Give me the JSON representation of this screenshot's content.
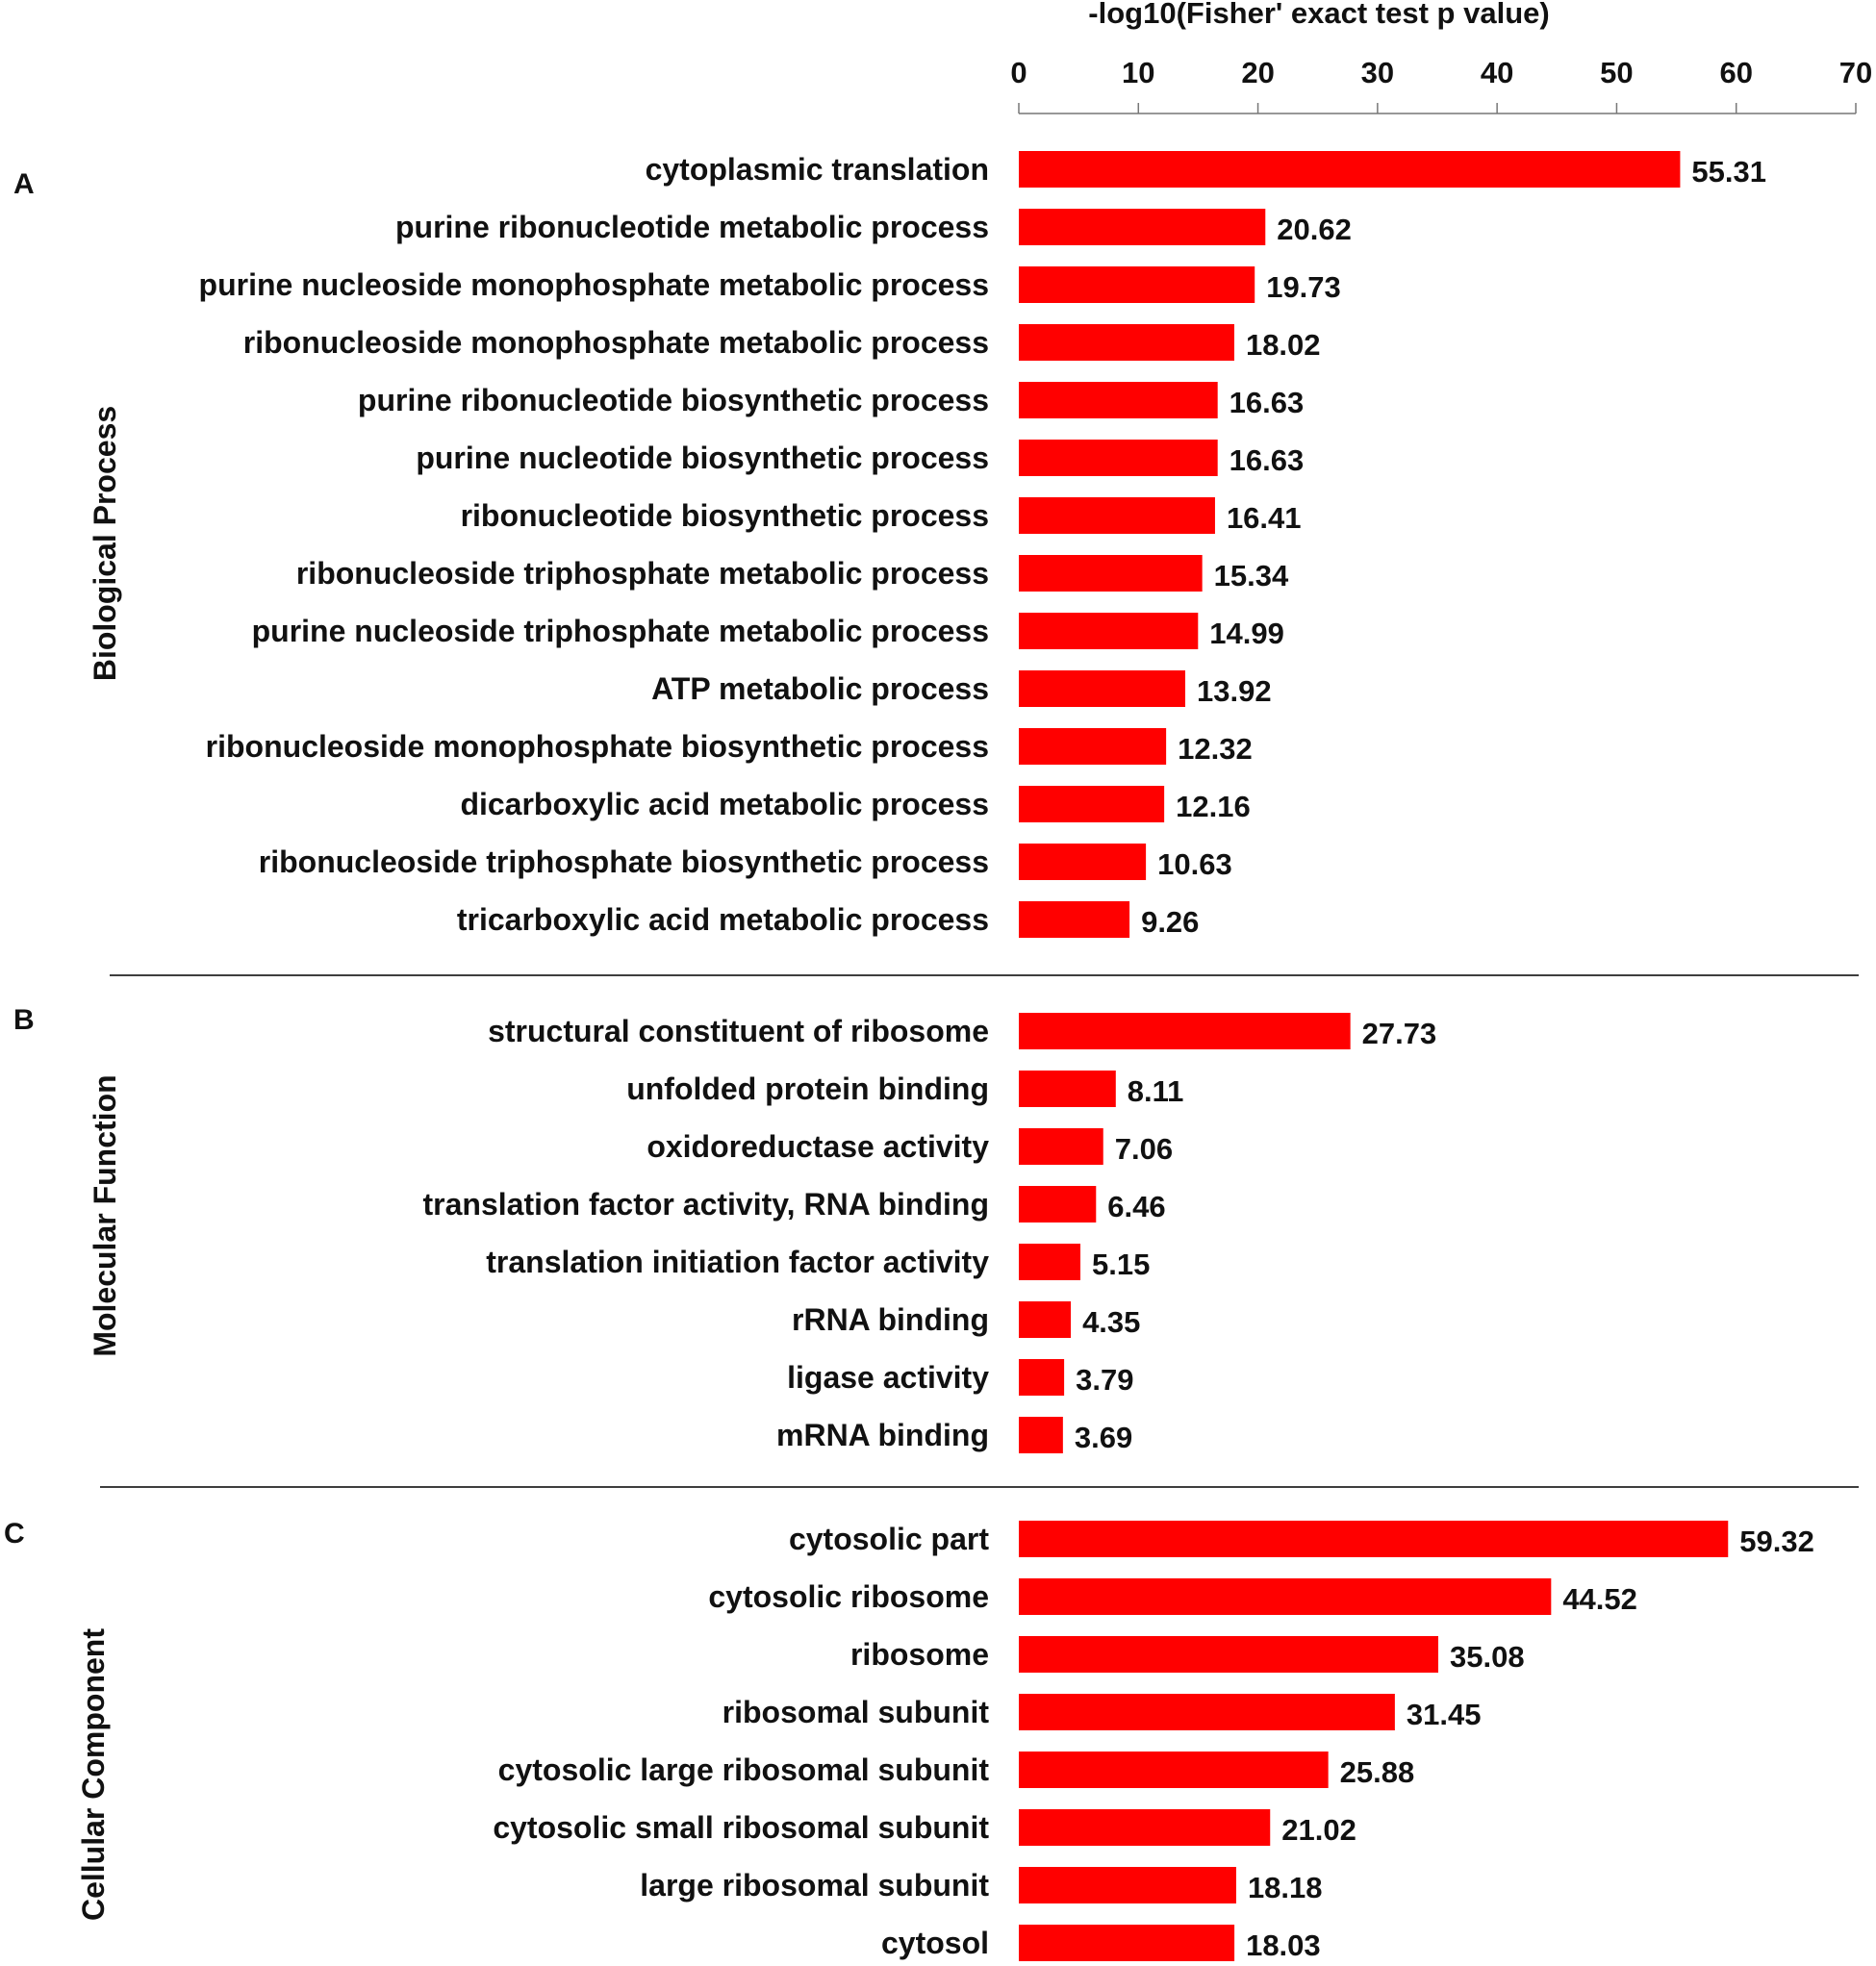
{
  "chart_data": {
    "type": "bar",
    "orientation": "horizontal",
    "title": "-log10(Fisher' exact test p value)",
    "xlabel": "-log10(Fisher' exact test p value)",
    "xlim": [
      0,
      70
    ],
    "xticks": [
      "0",
      "10",
      "20",
      "30",
      "40",
      "50",
      "60",
      "70"
    ],
    "axis_position": "top",
    "bar_color": "#ff0000",
    "panels": [
      {
        "letter": "A",
        "name": "Biological Process",
        "categories": [
          "cytoplasmic translation",
          "purine ribonucleotide metabolic process",
          "purine nucleoside monophosphate metabolic process",
          "ribonucleoside monophosphate metabolic process",
          "purine ribonucleotide biosynthetic process",
          "purine nucleotide biosynthetic process",
          "ribonucleotide biosynthetic process",
          "ribonucleoside triphosphate metabolic process",
          "purine nucleoside triphosphate metabolic process",
          "ATP metabolic process",
          "ribonucleoside monophosphate biosynthetic process",
          "dicarboxylic acid metabolic process",
          "ribonucleoside triphosphate biosynthetic process",
          "tricarboxylic acid metabolic process"
        ],
        "values": [
          55.31,
          20.62,
          19.73,
          18.02,
          16.63,
          16.63,
          16.41,
          15.34,
          14.99,
          13.92,
          12.32,
          12.16,
          10.63,
          9.26
        ],
        "labels": [
          "55.31",
          "20.62",
          "19.73",
          "18.02",
          "16.63",
          "16.63",
          "16.41",
          "15.34",
          "14.99",
          "13.92",
          "12.32",
          "12.16",
          "10.63",
          "9.26"
        ]
      },
      {
        "letter": "B",
        "name": "Molecular Function",
        "categories": [
          "structural constituent of ribosome",
          "unfolded protein binding",
          "oxidoreductase activity",
          "translation factor activity, RNA binding",
          "translation initiation factor activity",
          "rRNA binding",
          "ligase activity",
          "mRNA binding"
        ],
        "values": [
          27.73,
          8.11,
          7.06,
          6.46,
          5.15,
          4.35,
          3.79,
          3.69
        ],
        "labels": [
          "27.73",
          "8.11",
          "7.06",
          "6.46",
          "5.15",
          "4.35",
          "3.79",
          "3.69"
        ]
      },
      {
        "letter": "C",
        "name": "Cellular Component",
        "categories": [
          "cytosolic part",
          "cytosolic ribosome",
          "ribosome",
          "ribosomal subunit",
          "cytosolic large ribosomal subunit",
          "cytosolic small ribosomal subunit",
          "large ribosomal subunit",
          "cytosol"
        ],
        "values": [
          59.32,
          44.52,
          35.08,
          31.45,
          25.88,
          21.02,
          18.18,
          18.03
        ],
        "labels": [
          "59.32",
          "44.52",
          "35.08",
          "31.45",
          "25.88",
          "21.02",
          "18.18",
          "18.03"
        ]
      }
    ]
  }
}
